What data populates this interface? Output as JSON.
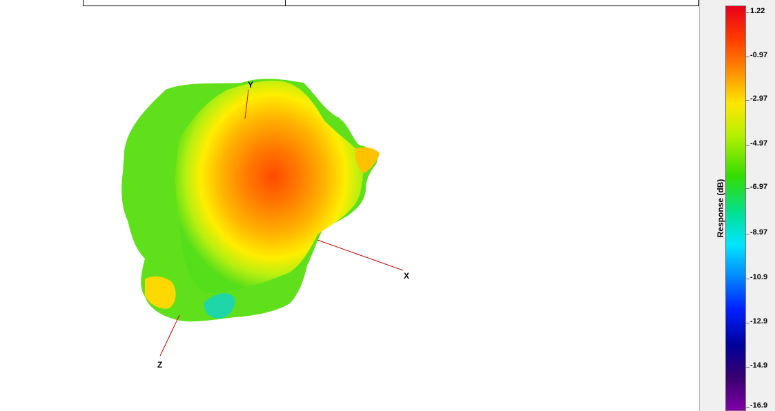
{
  "axes": {
    "x_label": "X",
    "y_label": "Y",
    "z_label": "Z"
  },
  "colorbar": {
    "title": "Response  (dB)",
    "ticks": [
      "1.22",
      "-0.97",
      "-2.97",
      "-4.97",
      "-6.97",
      "-8.97",
      "-10.9",
      "-12.9",
      "-14.9",
      "-16.9"
    ],
    "max_color": "#e8001a",
    "min_color": "#7e00a8"
  },
  "surface_colors": {
    "green": "#5fe01a",
    "yellow_green": "#c8f000",
    "yellow": "#ffe600",
    "orange": "#ff9a00",
    "red_orange": "#ff5a00",
    "teal": "#1fd6a8"
  }
}
